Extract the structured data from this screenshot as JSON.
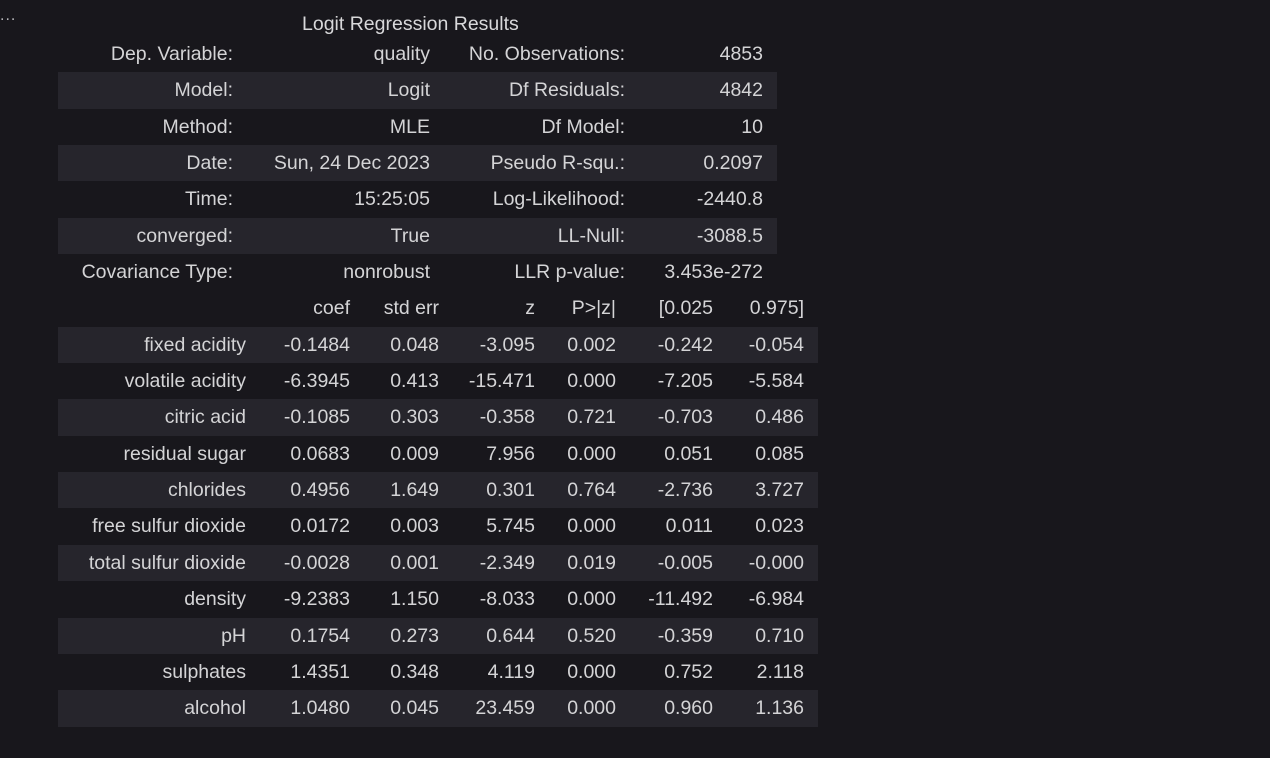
{
  "output": {
    "ellipsis": "...",
    "title": "Logit Regression Results",
    "summary": [
      {
        "l1": "Dep. Variable:",
        "v1": "quality",
        "l2": "No. Observations:",
        "v2": "4853"
      },
      {
        "l1": "Model:",
        "v1": "Logit",
        "l2": "Df Residuals:",
        "v2": "4842"
      },
      {
        "l1": "Method:",
        "v1": "MLE",
        "l2": "Df Model:",
        "v2": "10"
      },
      {
        "l1": "Date:",
        "v1": "Sun, 24 Dec 2023",
        "l2": "Pseudo R-squ.:",
        "v2": "0.2097"
      },
      {
        "l1": "Time:",
        "v1": "15:25:05",
        "l2": "Log-Likelihood:",
        "v2": "-2440.8"
      },
      {
        "l1": "converged:",
        "v1": "True",
        "l2": "LL-Null:",
        "v2": "-3088.5"
      },
      {
        "l1": "Covariance Type:",
        "v1": "nonrobust",
        "l2": "LLR p-value:",
        "v2": "3.453e-272"
      }
    ],
    "coef_header": [
      "",
      "coef",
      "std err",
      "z",
      "P>|z|",
      "[0.025",
      "0.975]"
    ],
    "coef_rows": [
      [
        "fixed acidity",
        "-0.1484",
        "0.048",
        "-3.095",
        "0.002",
        "-0.242",
        "-0.054"
      ],
      [
        "volatile acidity",
        "-6.3945",
        "0.413",
        "-15.471",
        "0.000",
        "-7.205",
        "-5.584"
      ],
      [
        "citric acid",
        "-0.1085",
        "0.303",
        "-0.358",
        "0.721",
        "-0.703",
        "0.486"
      ],
      [
        "residual sugar",
        "0.0683",
        "0.009",
        "7.956",
        "0.000",
        "0.051",
        "0.085"
      ],
      [
        "chlorides",
        "0.4956",
        "1.649",
        "0.301",
        "0.764",
        "-2.736",
        "3.727"
      ],
      [
        "free sulfur dioxide",
        "0.0172",
        "0.003",
        "5.745",
        "0.000",
        "0.011",
        "0.023"
      ],
      [
        "total sulfur dioxide",
        "-0.0028",
        "0.001",
        "-2.349",
        "0.019",
        "-0.005",
        "-0.000"
      ],
      [
        "density",
        "-9.2383",
        "1.150",
        "-8.033",
        "0.000",
        "-11.492",
        "-6.984"
      ],
      [
        "pH",
        "0.1754",
        "0.273",
        "0.644",
        "0.520",
        "-0.359",
        "0.710"
      ],
      [
        "sulphates",
        "1.4351",
        "0.348",
        "4.119",
        "0.000",
        "0.752",
        "2.118"
      ],
      [
        "alcohol",
        "1.0480",
        "0.045",
        "23.459",
        "0.000",
        "0.960",
        "1.136"
      ]
    ]
  }
}
